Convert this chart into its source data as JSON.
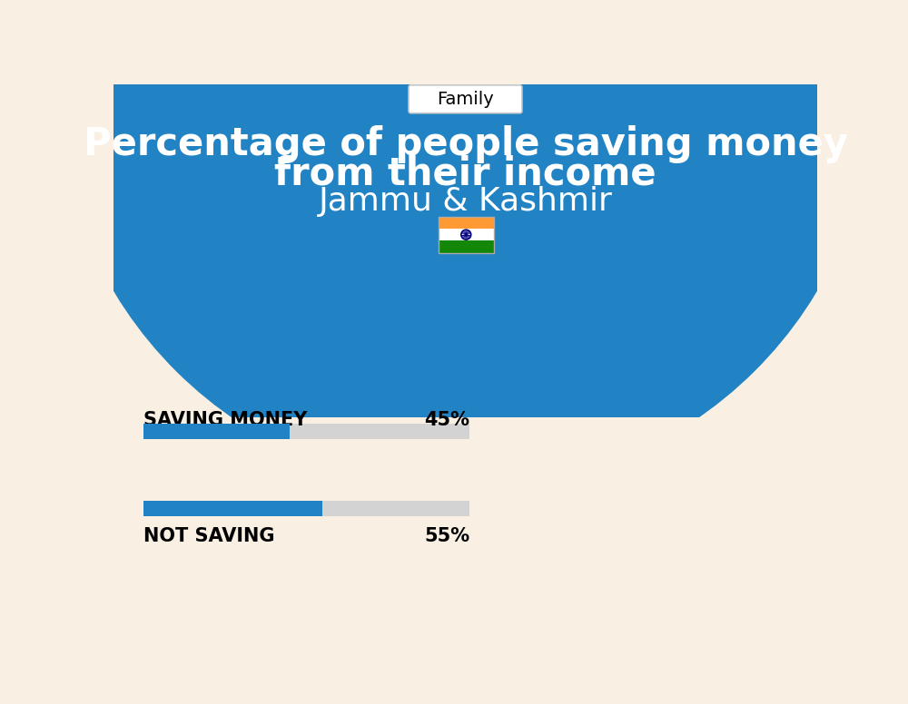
{
  "title_line1": "Percentage of people saving money",
  "title_line2": "from their income",
  "subtitle": "Jammu & Kashmir",
  "tag": "Family",
  "bg_blue": "#2183C4",
  "bg_cream": "#F9EFE3",
  "bar_blue": "#2183C4",
  "bar_gray": "#D3D3D3",
  "label1": "SAVING MONEY",
  "value1": 45,
  "label1_text": "45%",
  "label2": "NOT SAVING",
  "value2": 55,
  "label2_text": "55%",
  "white": "#FFFFFF",
  "black": "#000000",
  "tag_box_color": "#FFFFFF",
  "fig_width": 10.0,
  "fig_height": 7.76,
  "dpi": 100
}
